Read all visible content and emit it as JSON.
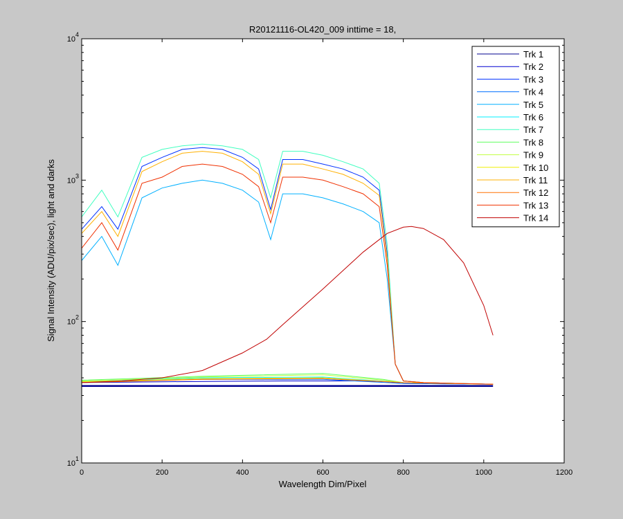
{
  "chart_data": {
    "type": "line",
    "title": "R20121116-OL420_009 inttime = 18,",
    "xlabel": "Wavelength Dim/Pixel",
    "ylabel": "Signal Intensity (ADU/pix/sec), light and darks",
    "xlim": [
      0,
      1200
    ],
    "ylim": [
      10,
      10000
    ],
    "y_scale": "log",
    "grid": false,
    "legend_position": "top-right",
    "x_ticks": [
      0,
      200,
      400,
      600,
      800,
      1000,
      1200
    ],
    "x_tick_labels": [
      "0",
      "200",
      "400",
      "600",
      "800",
      "1000",
      "1200"
    ],
    "y_ticks": [
      {
        "value": 10,
        "base": "10",
        "exp": "1"
      },
      {
        "value": 100,
        "base": "10",
        "exp": "2"
      },
      {
        "value": 1000,
        "base": "10",
        "exp": "3"
      },
      {
        "value": 10000,
        "base": "10",
        "exp": "4"
      }
    ],
    "series": [
      {
        "name": "Trk 1",
        "color": "#00008f",
        "x": [
          0,
          1023
        ],
        "y": [
          35,
          35
        ]
      },
      {
        "name": "Trk 2",
        "color": "#0000d0",
        "x": [
          0,
          200,
          500,
          700,
          760,
          800,
          1023
        ],
        "y": [
          37,
          37.5,
          38,
          38,
          37.5,
          36.5,
          36
        ]
      },
      {
        "name": "Trk 3",
        "color": "#0030ff",
        "x": [
          0,
          50,
          90,
          150,
          200,
          250,
          300,
          350,
          400,
          440,
          470,
          500,
          550,
          600,
          650,
          700,
          740,
          760,
          780,
          800,
          850,
          1023
        ],
        "y": [
          450,
          650,
          450,
          1250,
          1450,
          1650,
          1700,
          1650,
          1450,
          1200,
          620,
          1400,
          1400,
          1300,
          1200,
          1050,
          850,
          300,
          50,
          38,
          37,
          36
        ]
      },
      {
        "name": "Trk 4",
        "color": "#0070ff",
        "x": [
          0,
          300,
          600,
          800,
          1023
        ],
        "y": [
          37.5,
          39,
          39,
          36.5,
          36
        ]
      },
      {
        "name": "Trk 5",
        "color": "#00b0ff",
        "x": [
          0,
          50,
          90,
          150,
          200,
          250,
          300,
          350,
          400,
          440,
          470,
          500,
          550,
          600,
          650,
          700,
          740,
          760,
          780,
          800,
          850,
          1023
        ],
        "y": [
          270,
          400,
          250,
          750,
          880,
          950,
          1000,
          950,
          850,
          700,
          380,
          800,
          800,
          750,
          680,
          600,
          500,
          200,
          50,
          38,
          37,
          36
        ]
      },
      {
        "name": "Trk 6",
        "color": "#00f0ff",
        "x": [
          0,
          300,
          600,
          800,
          1023
        ],
        "y": [
          38,
          40,
          40.5,
          37,
          36
        ]
      },
      {
        "name": "Trk 7",
        "color": "#40ffc0",
        "x": [
          0,
          50,
          90,
          150,
          200,
          250,
          300,
          350,
          400,
          440,
          470,
          500,
          550,
          600,
          650,
          700,
          740,
          760,
          780,
          800,
          850,
          1023
        ],
        "y": [
          550,
          850,
          550,
          1450,
          1650,
          1750,
          1800,
          1750,
          1650,
          1400,
          750,
          1600,
          1600,
          1500,
          1350,
          1200,
          950,
          350,
          50,
          38,
          37,
          36
        ]
      },
      {
        "name": "Trk 8",
        "color": "#60ff60",
        "x": [
          0,
          300,
          600,
          750,
          800,
          1023
        ],
        "y": [
          38.5,
          41,
          43,
          39,
          37,
          36
        ]
      },
      {
        "name": "Trk 9",
        "color": "#c0ff40",
        "x": [
          0,
          300,
          600,
          750,
          800,
          1023
        ],
        "y": [
          38,
          40.5,
          42,
          38.5,
          37,
          36
        ]
      },
      {
        "name": "Trk 10",
        "color": "#f0f000",
        "x": [
          0,
          300,
          600,
          800,
          1023
        ],
        "y": [
          37.5,
          39.5,
          40,
          37,
          36
        ]
      },
      {
        "name": "Trk 11",
        "color": "#ffb000",
        "x": [
          0,
          50,
          90,
          150,
          200,
          250,
          300,
          350,
          400,
          440,
          470,
          500,
          550,
          600,
          650,
          700,
          740,
          760,
          780,
          800,
          850,
          1023
        ],
        "y": [
          420,
          600,
          400,
          1150,
          1350,
          1550,
          1600,
          1550,
          1350,
          1100,
          580,
          1300,
          1300,
          1200,
          1100,
          950,
          780,
          280,
          50,
          38,
          37,
          36
        ]
      },
      {
        "name": "Trk 12",
        "color": "#ff7000",
        "x": [
          0,
          300,
          600,
          800,
          1023
        ],
        "y": [
          37,
          39,
          39.5,
          37,
          36
        ]
      },
      {
        "name": "Trk 13",
        "color": "#f03000",
        "x": [
          0,
          50,
          90,
          150,
          200,
          250,
          300,
          350,
          400,
          440,
          470,
          500,
          550,
          600,
          650,
          700,
          740,
          760,
          780,
          800,
          850,
          1023
        ],
        "y": [
          330,
          500,
          320,
          950,
          1050,
          1250,
          1300,
          1250,
          1100,
          900,
          500,
          1050,
          1050,
          1000,
          900,
          800,
          650,
          250,
          50,
          38,
          37,
          36
        ]
      },
      {
        "name": "Trk 14",
        "color": "#c00000",
        "x": [
          0,
          100,
          200,
          300,
          400,
          460,
          500,
          600,
          700,
          760,
          800,
          820,
          850,
          900,
          950,
          1000,
          1023
        ],
        "y": [
          37,
          38,
          40,
          45,
          60,
          75,
          95,
          170,
          310,
          420,
          465,
          470,
          455,
          380,
          260,
          130,
          80
        ]
      }
    ]
  }
}
